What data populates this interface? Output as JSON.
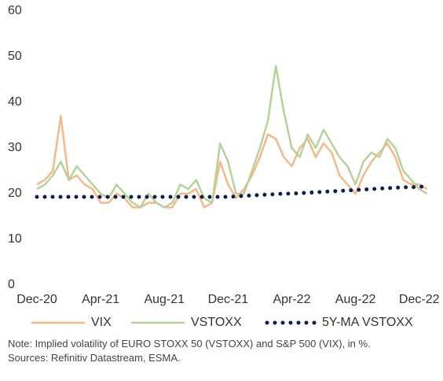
{
  "chart_data": {
    "type": "line",
    "x": [
      0,
      0.5,
      1,
      1.5,
      2,
      2.5,
      3,
      3.5,
      4,
      4.5,
      5,
      5.5,
      6,
      6.5,
      7,
      7.5,
      8,
      8.5,
      9,
      9.5,
      10,
      10.5,
      11,
      11.5,
      12,
      12.5,
      13,
      13.5,
      14,
      14.5,
      15,
      15.5,
      16,
      16.5,
      17,
      17.5,
      18,
      18.5,
      19,
      19.5,
      20,
      20.5,
      21,
      21.5,
      22,
      22.5,
      23,
      23.5,
      24,
      24.5
    ],
    "xlim": [
      0,
      25
    ],
    "xticks": [
      {
        "value": 0,
        "label": "Dec-20"
      },
      {
        "value": 4,
        "label": "Apr-21"
      },
      {
        "value": 8,
        "label": "Aug-21"
      },
      {
        "value": 12,
        "label": "Dec-21"
      },
      {
        "value": 16,
        "label": "Apr-22"
      },
      {
        "value": 20,
        "label": "Aug-22"
      },
      {
        "value": 24,
        "label": "Dec-22"
      }
    ],
    "ylim": [
      0,
      60
    ],
    "yticks": [
      0,
      10,
      20,
      30,
      40,
      50,
      60
    ],
    "grid": false,
    "legend": "bottom",
    "series": [
      {
        "name": "VIX",
        "color": "#f5b888",
        "style": "solid",
        "values": [
          22,
          23,
          25,
          37,
          23,
          24,
          22,
          21,
          18,
          18,
          20,
          19,
          17,
          17,
          18,
          18,
          17,
          17,
          20,
          20,
          21,
          17,
          18,
          27,
          22,
          19,
          21,
          24,
          28,
          33,
          32,
          28,
          26,
          30,
          32,
          28,
          31,
          29,
          24,
          22,
          20,
          24,
          27,
          29,
          31,
          28,
          23,
          22,
          22,
          21
        ]
      },
      {
        "name": "VSTOXX",
        "color": "#b5d29a",
        "style": "solid",
        "values": [
          21,
          22,
          24,
          27,
          23,
          26,
          24,
          22,
          20,
          19,
          22,
          20,
          18,
          17,
          20,
          18,
          17,
          18,
          22,
          21,
          23,
          19,
          18,
          31,
          27,
          20,
          20,
          25,
          30,
          36,
          48,
          38,
          30,
          28,
          33,
          30,
          34,
          31,
          28,
          26,
          22,
          27,
          29,
          28,
          32,
          30,
          25,
          23,
          21,
          20
        ]
      },
      {
        "name": "5Y-MA VSTOXX",
        "color": "#0d1f4d",
        "style": "dotted",
        "values": [
          19.3,
          19.3,
          19.3,
          19.3,
          19.3,
          19.3,
          19.3,
          19.3,
          19.3,
          19.3,
          19.3,
          19.3,
          19.3,
          19.3,
          19.3,
          19.3,
          19.3,
          19.3,
          19.3,
          19.3,
          19.3,
          19.3,
          19.3,
          19.3,
          19.3,
          19.4,
          19.5,
          19.6,
          19.7,
          19.8,
          19.9,
          20.0,
          20.0,
          20.1,
          20.2,
          20.3,
          20.4,
          20.5,
          20.6,
          20.7,
          20.8,
          20.9,
          21.0,
          21.1,
          21.2,
          21.3,
          21.4,
          21.4,
          21.5,
          21.6
        ]
      }
    ],
    "note": "Note: Implied volatility of EURO STOXX 50 (VSTOXX) and S&P 500 (VIX), in %.",
    "source": "Sources: Refinitiv Datastream, ESMA."
  }
}
